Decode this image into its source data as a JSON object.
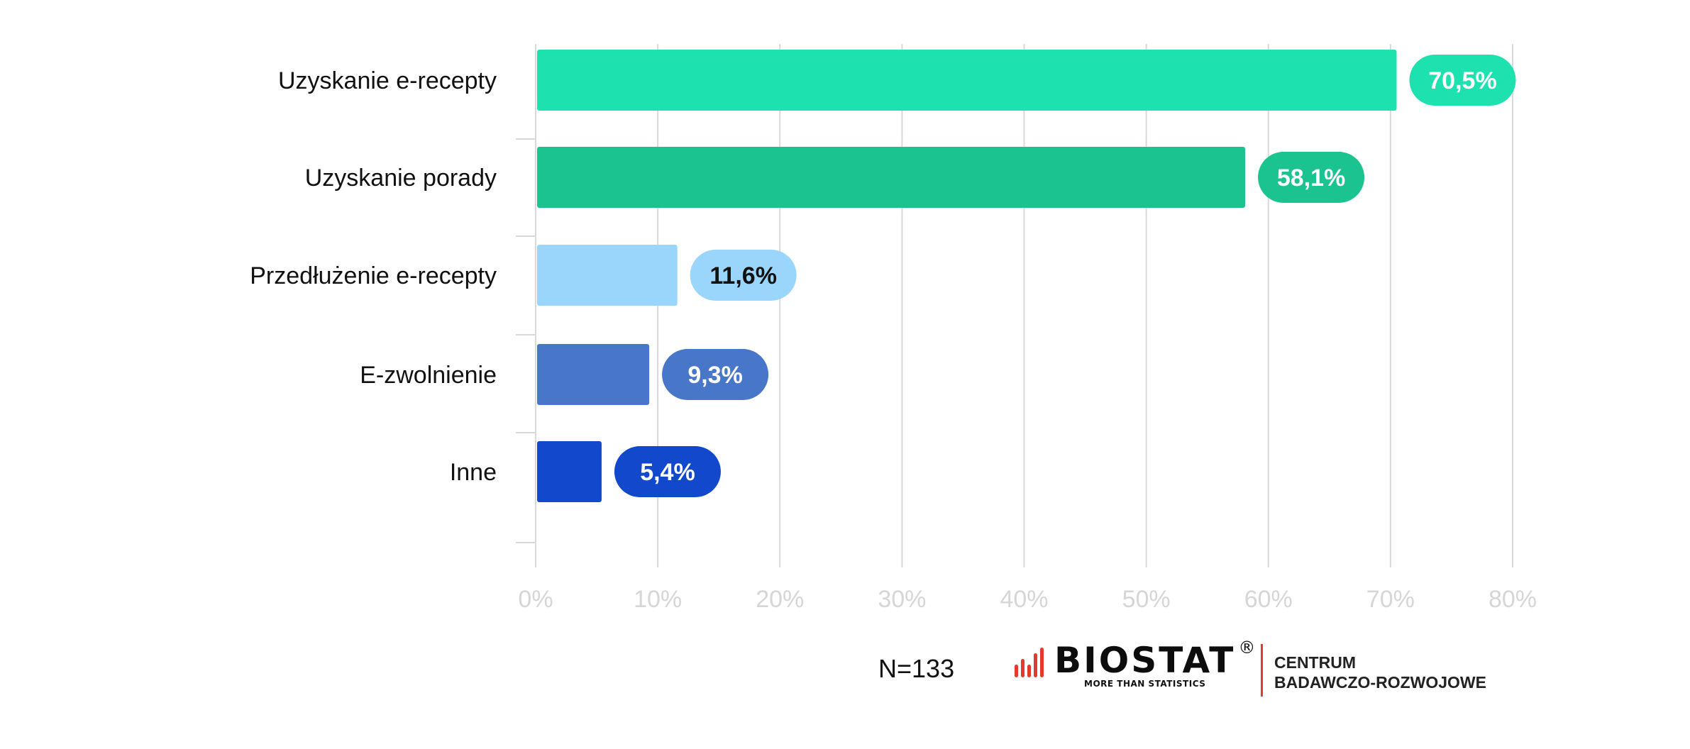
{
  "chart_data": {
    "type": "bar",
    "orientation": "horizontal",
    "title": "",
    "xlabel": "",
    "ylabel": "",
    "categories": [
      "Uzyskanie e-recepty",
      "Uzyskanie porady",
      "Przedłużenie e-recepty",
      "E-zwolnienie",
      "Inne"
    ],
    "values": [
      70.5,
      58.1,
      11.6,
      9.3,
      5.4
    ],
    "value_labels": [
      "70,5%",
      "58,1%",
      "11,6%",
      "9,3%",
      "5,4%"
    ],
    "colors": [
      "#1de2b0",
      "#1bc391",
      "#9ad6fb",
      "#4876c8",
      "#1249cc"
    ],
    "label_text_colors": [
      "#ffffff",
      "#ffffff",
      "#111111",
      "#ffffff",
      "#ffffff"
    ],
    "xlim": [
      0,
      80
    ],
    "x_ticks": [
      0,
      10,
      20,
      30,
      40,
      50,
      60,
      70,
      80
    ],
    "x_tick_labels": [
      "0%",
      "10%",
      "20%",
      "30%",
      "40%",
      "50%",
      "60%",
      "70%",
      "80%"
    ],
    "grid": true,
    "legend": "none"
  },
  "footer": {
    "sample_size": "N=133",
    "brand": "BIOSTAT",
    "registered_mark": "®",
    "tagline": "MORE THAN STATISTICS",
    "subtitle_line1": "CENTRUM",
    "subtitle_line2": "BADAWCZO-ROZWOJOWE",
    "logo_color": "#e23a2c"
  }
}
